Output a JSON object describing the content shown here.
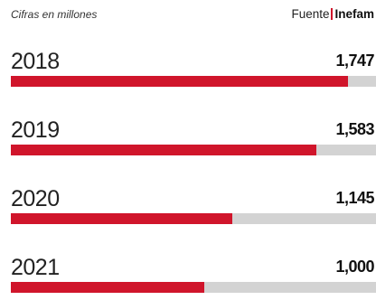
{
  "header": {
    "subtitle": "Cifras en millones",
    "source_label": "Fuente",
    "source_name": "Inefam"
  },
  "colors": {
    "bar": "#d0152b",
    "track": "#d3d3d3",
    "separator": "#d0152b"
  },
  "chart_data": {
    "type": "bar",
    "orientation": "horizontal",
    "subtitle": "Cifras en millones",
    "categories": [
      "2018",
      "2019",
      "2020",
      "2021"
    ],
    "values": [
      1747,
      1583,
      1145,
      1000
    ],
    "value_labels": [
      "1,747",
      "1,583",
      "1,145",
      "1,000"
    ],
    "xlim": [
      0,
      1890
    ],
    "grid": false,
    "legend": "none"
  }
}
